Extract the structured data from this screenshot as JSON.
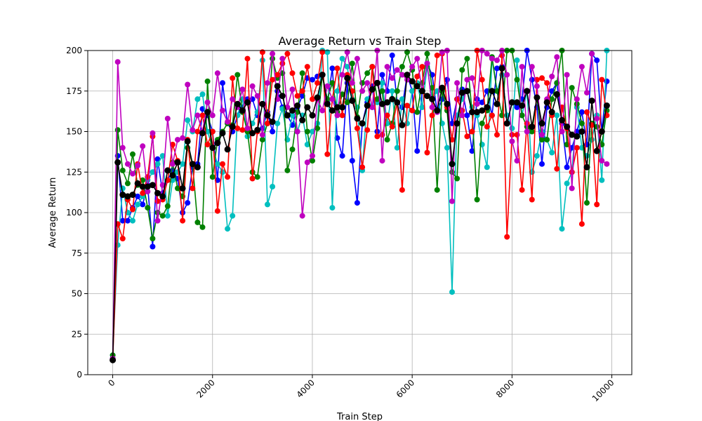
{
  "chart_data": {
    "type": "line",
    "title": "Average Return vs Train Step",
    "xlabel": "Train Step",
    "ylabel": "Average Return",
    "xlim": [
      -500,
      10400
    ],
    "ylim": [
      0,
      200
    ],
    "xticks": [
      0,
      2000,
      4000,
      6000,
      8000,
      10000
    ],
    "yticks": [
      0,
      25,
      50,
      75,
      100,
      125,
      150,
      175,
      200
    ],
    "grid": true,
    "legend": "none",
    "series": [
      {
        "color": "#0000ff",
        "x": [
          0,
          100,
          200,
          300,
          400,
          500,
          600,
          700,
          800,
          900,
          1000,
          1100,
          1200,
          1300,
          1400,
          1500,
          1600,
          1700,
          1800,
          1900,
          2000,
          2100,
          2200,
          2300,
          2400,
          2500,
          2600,
          2700,
          2800,
          2900,
          3000,
          3100,
          3200,
          3300,
          3400,
          3500,
          3600,
          3700,
          3800,
          3900,
          4000,
          4100,
          4200,
          4300,
          4400,
          4500,
          4600,
          4700,
          4800,
          4900,
          5000,
          5100,
          5200,
          5300,
          5400,
          5500,
          5600,
          5700,
          5800,
          5900,
          6000,
          6100,
          6200,
          6300,
          6400,
          6500,
          6600,
          6700,
          6800,
          6900,
          7000,
          7100,
          7200,
          7300,
          7400,
          7500,
          7600,
          7700,
          7800,
          7900,
          8000,
          8100,
          8200,
          8300,
          8400,
          8500,
          8600,
          8700,
          8800,
          8900,
          9000,
          9100,
          9200,
          9300,
          9400,
          9500,
          9600,
          9700,
          9800,
          9900
        ],
        "y": [
          10,
          135,
          95,
          95,
          103,
          110,
          105,
          117,
          79,
          133,
          112,
          120,
          126,
          121,
          100,
          106,
          128,
          130,
          164,
          160,
          150,
          120,
          180,
          155,
          150,
          160,
          165,
          170,
          170,
          160,
          152,
          162,
          150,
          175,
          165,
          160,
          154,
          165,
          172,
          183,
          182,
          184,
          185,
          168,
          189,
          146,
          135,
          180,
          132,
          106,
          155,
          168,
          178,
          150,
          185,
          175,
          197,
          168,
          165,
          185,
          175,
          138,
          175,
          192,
          185,
          162,
          170,
          182,
          155,
          170,
          176,
          160,
          138,
          170,
          168,
          175,
          160,
          189,
          190,
          155,
          168,
          165,
          170,
          200,
          182,
          165,
          130,
          165,
          175,
          180,
          155,
          128,
          140,
          150,
          162,
          142,
          198,
          194,
          150,
          181
        ]
      },
      {
        "color": "#00bfbf",
        "x": [
          0,
          100,
          200,
          300,
          400,
          500,
          600,
          700,
          800,
          900,
          1000,
          1100,
          1200,
          1300,
          1400,
          1500,
          1600,
          1700,
          1800,
          1900,
          2000,
          2100,
          2200,
          2300,
          2400,
          2500,
          2600,
          2700,
          2800,
          2900,
          3000,
          3100,
          3200,
          3300,
          3400,
          3500,
          3600,
          3700,
          3800,
          3900,
          4000,
          4100,
          4200,
          4300,
          4400,
          4500,
          4600,
          4700,
          4800,
          4900,
          5000,
          5100,
          5200,
          5300,
          5400,
          5500,
          5600,
          5700,
          5800,
          5900,
          6000,
          6100,
          6200,
          6300,
          6400,
          6500,
          6600,
          6700,
          6800,
          6900,
          7000,
          7100,
          7200,
          7300,
          7400,
          7500,
          7600,
          7700,
          7800,
          7900,
          8000,
          8100,
          8200,
          8300,
          8400,
          8500,
          8600,
          8700,
          8800,
          8900,
          9000,
          9100,
          9200,
          9300,
          9400,
          9500,
          9600,
          9700,
          9800,
          9900
        ],
        "y": [
          12,
          80,
          115,
          100,
          95,
          105,
          110,
          120,
          125,
          130,
          135,
          98,
          120,
          125,
          130,
          157,
          150,
          170,
          173,
          150,
          140,
          130,
          125,
          90,
          98,
          160,
          170,
          147,
          155,
          162,
          194,
          105,
          116,
          155,
          164,
          145,
          160,
          150,
          160,
          142,
          150,
          155,
          200,
          199,
          103,
          175,
          195,
          190,
          170,
          165,
          126,
          170,
          165,
          168,
          180,
          155,
          175,
          140,
          170,
          155,
          175,
          180,
          165,
          190,
          170,
          175,
          155,
          140,
          51,
          160,
          170,
          175,
          165,
          160,
          142,
          128,
          195,
          175,
          185,
          160,
          152,
          194,
          160,
          175,
          125,
          135,
          150,
          145,
          137,
          160,
          90,
          118,
          125,
          165,
          140,
          135,
          145,
          160,
          120,
          200
        ]
      },
      {
        "color": "#008000",
        "x": [
          0,
          100,
          200,
          300,
          400,
          500,
          600,
          700,
          800,
          900,
          1000,
          1100,
          1200,
          1300,
          1400,
          1500,
          1600,
          1700,
          1800,
          1900,
          2000,
          2100,
          2200,
          2300,
          2400,
          2500,
          2600,
          2700,
          2800,
          2900,
          3000,
          3100,
          3200,
          3300,
          3400,
          3500,
          3600,
          3700,
          3800,
          3900,
          4000,
          4100,
          4200,
          4300,
          4400,
          4500,
          4600,
          4700,
          4800,
          4900,
          5000,
          5100,
          5200,
          5300,
          5400,
          5500,
          5600,
          5700,
          5800,
          5900,
          6000,
          6100,
          6200,
          6300,
          6400,
          6500,
          6600,
          6700,
          6800,
          6900,
          7000,
          7100,
          7200,
          7300,
          7400,
          7500,
          7600,
          7700,
          7800,
          7900,
          8000,
          8100,
          8200,
          8300,
          8400,
          8500,
          8600,
          8700,
          8800,
          8900,
          9000,
          9100,
          9200,
          9300,
          9400,
          9500,
          9600,
          9700,
          9800,
          9900
        ],
        "y": [
          12,
          151,
          126,
          118,
          136,
          117,
          120,
          103,
          84,
          100,
          98,
          104,
          131,
          115,
          110,
          140,
          130,
          94,
          91,
          181,
          122,
          145,
          150,
          155,
          154,
          185,
          162,
          150,
          125,
          122,
          145,
          155,
          195,
          183,
          186,
          126,
          139,
          162,
          186,
          150,
          132,
          152,
          185,
          170,
          180,
          162,
          173,
          168,
          192,
          159,
          180,
          186,
          190,
          170,
          175,
          145,
          155,
          175,
          190,
          199,
          188,
          162,
          180,
          198,
          177,
          114,
          175,
          163,
          125,
          121,
          188,
          195,
          162,
          108,
          155,
          163,
          196,
          175,
          160,
          200,
          200,
          182,
          160,
          153,
          150,
          171,
          145,
          145,
          170,
          180,
          200,
          142,
          177,
          167,
          155,
          106,
          155,
          153,
          142,
          163
        ]
      },
      {
        "color": "#ff0000",
        "x": [
          0,
          100,
          200,
          300,
          400,
          500,
          600,
          700,
          800,
          900,
          1000,
          1100,
          1200,
          1300,
          1400,
          1500,
          1600,
          1700,
          1800,
          1900,
          2000,
          2100,
          2200,
          2300,
          2400,
          2500,
          2600,
          2700,
          2800,
          2900,
          3000,
          3100,
          3200,
          3300,
          3400,
          3500,
          3600,
          3700,
          3800,
          3900,
          4000,
          4100,
          4200,
          4300,
          4400,
          4500,
          4600,
          4700,
          4800,
          4900,
          5000,
          5100,
          5200,
          5300,
          5400,
          5500,
          5600,
          5700,
          5800,
          5900,
          6000,
          6100,
          6200,
          6300,
          6400,
          6500,
          6600,
          6700,
          6800,
          6900,
          7000,
          7100,
          7200,
          7300,
          7400,
          7500,
          7600,
          7700,
          7800,
          7900,
          8000,
          8100,
          8200,
          8300,
          8400,
          8500,
          8600,
          8700,
          8800,
          8900,
          9000,
          9100,
          9200,
          9300,
          9400,
          9500,
          9600,
          9700,
          9800,
          9900
        ],
        "y": [
          9,
          93,
          84,
          108,
          102,
          130,
          112,
          122,
          147,
          107,
          108,
          120,
          142,
          132,
          95,
          145,
          115,
          150,
          160,
          142,
          150,
          101,
          130,
          122,
          183,
          152,
          151,
          195,
          121,
          150,
          199,
          155,
          182,
          185,
          192,
          198,
          186,
          172,
          175,
          190,
          170,
          180,
          199,
          136,
          170,
          189,
          160,
          185,
          175,
          152,
          128,
          151,
          190,
          147,
          148,
          160,
          153,
          168,
          114,
          166,
          163,
          184,
          190,
          137,
          160,
          197,
          198,
          165,
          145,
          170,
          163,
          147,
          150,
          200,
          182,
          153,
          160,
          148,
          197,
          85,
          148,
          148,
          114,
          155,
          108,
          182,
          183,
          180,
          160,
          127,
          165,
          152,
          125,
          140,
          93,
          162,
          154,
          105,
          182,
          160
        ]
      },
      {
        "color": "#bf00bf",
        "x": [
          0,
          100,
          200,
          300,
          400,
          500,
          600,
          700,
          800,
          900,
          1000,
          1100,
          1200,
          1300,
          1400,
          1500,
          1600,
          1700,
          1800,
          1900,
          2000,
          2100,
          2200,
          2300,
          2400,
          2500,
          2600,
          2700,
          2800,
          2900,
          3000,
          3100,
          3200,
          3300,
          3400,
          3500,
          3600,
          3700,
          3800,
          3900,
          4000,
          4100,
          4200,
          4300,
          4400,
          4500,
          4600,
          4700,
          4800,
          4900,
          5000,
          5100,
          5200,
          5300,
          5400,
          5500,
          5600,
          5700,
          5800,
          5900,
          6000,
          6100,
          6200,
          6300,
          6400,
          6500,
          6600,
          6700,
          6800,
          6900,
          7000,
          7100,
          7200,
          7300,
          7400,
          7500,
          7600,
          7700,
          7800,
          7900,
          8000,
          8100,
          8200,
          8300,
          8400,
          8500,
          8600,
          8700,
          8800,
          8900,
          9000,
          9100,
          9200,
          9300,
          9400,
          9500,
          9600,
          9700,
          9800,
          9900
        ],
        "y": [
          10,
          193,
          140,
          130,
          124,
          129,
          141,
          113,
          149,
          95,
          117,
          158,
          130,
          145,
          146,
          179,
          151,
          160,
          150,
          168,
          160,
          186,
          163,
          156,
          170,
          165,
          176,
          152,
          178,
          172,
          148,
          180,
          198,
          170,
          195,
          165,
          176,
          150,
          98,
          131,
          135,
          170,
          163,
          178,
          170,
          160,
          185,
          199,
          180,
          195,
          175,
          180,
          165,
          200,
          132,
          190,
          183,
          188,
          185,
          182,
          190,
          195,
          175,
          192,
          165,
          162,
          199,
          200,
          107,
          180,
          160,
          182,
          183,
          167,
          200,
          198,
          195,
          194,
          200,
          185,
          144,
          132,
          190,
          150,
          190,
          178,
          148,
          170,
          184,
          196,
          150,
          185,
          115,
          170,
          190,
          174,
          198,
          158,
          132,
          130
        ]
      },
      {
        "color": "#000000",
        "x": [
          0,
          100,
          200,
          300,
          400,
          500,
          600,
          700,
          800,
          900,
          1000,
          1100,
          1200,
          1300,
          1400,
          1500,
          1600,
          1700,
          1800,
          1900,
          2000,
          2100,
          2200,
          2300,
          2400,
          2500,
          2600,
          2700,
          2800,
          2900,
          3000,
          3100,
          3200,
          3300,
          3400,
          3500,
          3600,
          3700,
          3800,
          3900,
          4000,
          4100,
          4200,
          4300,
          4400,
          4500,
          4600,
          4700,
          4800,
          4900,
          5000,
          5100,
          5200,
          5300,
          5400,
          5500,
          5600,
          5700,
          5800,
          5900,
          6000,
          6100,
          6200,
          6300,
          6400,
          6500,
          6600,
          6700,
          6800,
          6900,
          7000,
          7100,
          7200,
          7300,
          7400,
          7500,
          7600,
          7700,
          7800,
          7900,
          8000,
          8100,
          8200,
          8300,
          8400,
          8500,
          8600,
          8700,
          8800,
          8900,
          9000,
          9100,
          9200,
          9300,
          9400,
          9500,
          9600,
          9700,
          9800,
          9900
        ],
        "y": [
          9,
          131,
          111,
          110,
          111,
          118,
          116,
          116,
          117,
          112,
          110,
          126,
          123,
          131,
          115,
          144,
          130,
          128,
          149,
          162,
          140,
          143,
          149,
          139,
          153,
          167,
          163,
          168,
          149,
          151,
          167,
          160,
          156,
          178,
          172,
          160,
          163,
          166,
          157,
          165,
          160,
          171,
          185,
          167,
          163,
          165,
          165,
          183,
          169,
          158,
          155,
          166,
          176,
          180,
          167,
          168,
          170,
          168,
          154,
          185,
          181,
          178,
          175,
          172,
          170,
          163,
          177,
          167,
          130,
          155,
          174,
          175,
          162,
          162,
          163,
          165,
          175,
          167,
          189,
          155,
          168,
          168,
          166,
          175,
          153,
          171,
          155,
          168,
          162,
          173,
          157,
          153,
          148,
          147,
          150,
          128,
          169,
          138,
          150,
          166
        ]
      }
    ]
  }
}
